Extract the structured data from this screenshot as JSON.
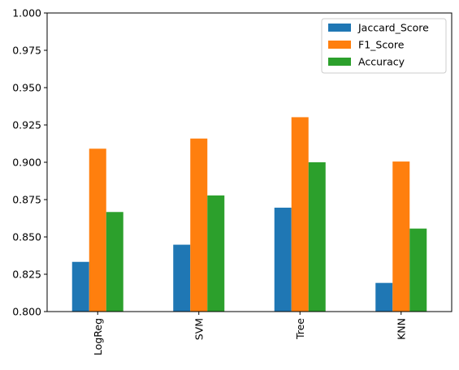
{
  "chart_data": {
    "type": "bar",
    "categories": [
      "LogReg",
      "SVM",
      "Tree",
      "KNN"
    ],
    "series": [
      {
        "name": "Jaccard_Score",
        "color": "#1f77b4",
        "values": [
          0.8333,
          0.8448,
          0.8696,
          0.8192
        ]
      },
      {
        "name": "F1_Score",
        "color": "#ff7f0e",
        "values": [
          0.9091,
          0.9159,
          0.9302,
          0.9005
        ]
      },
      {
        "name": "Accuracy",
        "color": "#2ca02c",
        "values": [
          0.8667,
          0.8778,
          0.9,
          0.8556
        ]
      }
    ],
    "title": "",
    "xlabel": "",
    "ylabel": "",
    "ylim": [
      0.8,
      1.0
    ],
    "yticks": [
      "0.800",
      "0.825",
      "0.850",
      "0.875",
      "0.900",
      "0.925",
      "0.950",
      "0.975",
      "1.000"
    ],
    "grid": false,
    "legend_position": "top-right"
  }
}
